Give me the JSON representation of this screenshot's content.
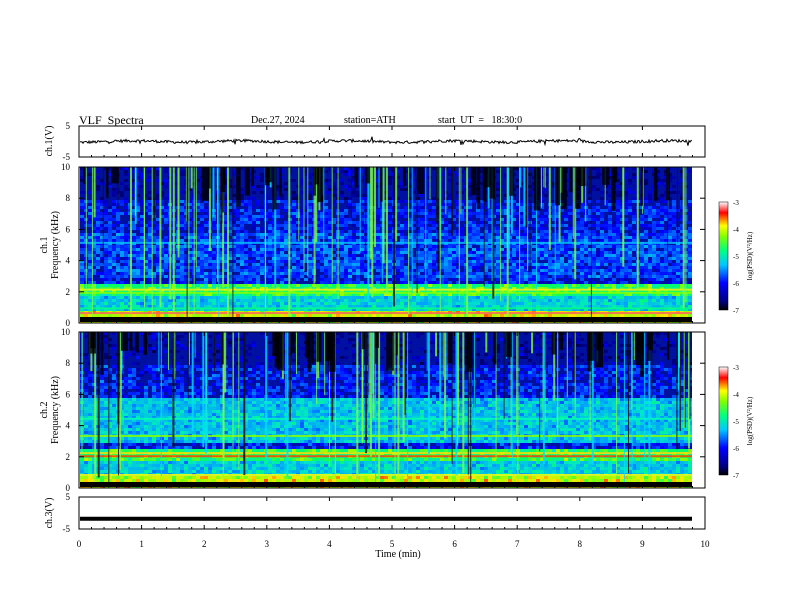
{
  "header": {
    "title": "VLF  Spectra",
    "date": "Dec.27, 2024",
    "station": "station=ATH",
    "start_ut": "start  UT  =   18:30:0"
  },
  "chart_data": [
    {
      "type": "line",
      "id": "ch1-waveform",
      "ylabel": "ch.1(V)",
      "ylim": [
        -5,
        5
      ],
      "y_ticks": [
        "5",
        "-5"
      ],
      "xlim": [
        0,
        10
      ],
      "description_free": true
    },
    {
      "type": "heatmap",
      "id": "ch1-spectrogram",
      "ylabel": "ch.1\nFrequency (kHz)",
      "ylabel_lines": [
        "ch.1",
        "Frequency (kHz)"
      ],
      "xlim": [
        0,
        10
      ],
      "ylim": [
        0,
        10
      ],
      "y_ticks": [
        "0",
        "2",
        "4",
        "6",
        "8",
        "10"
      ],
      "colorbar": {
        "label": "log(PSD)(V²/Hz)",
        "range": [
          -7,
          -3
        ],
        "ticks": [
          "-3",
          "-4",
          "-5",
          "-6",
          "-7"
        ]
      }
    },
    {
      "type": "heatmap",
      "id": "ch2-spectrogram",
      "ylabel_lines": [
        "ch.2",
        "Frequency (kHz)"
      ],
      "xlim": [
        0,
        10
      ],
      "ylim": [
        0,
        10
      ],
      "y_ticks": [
        "0",
        "2",
        "4",
        "6",
        "8",
        "10"
      ],
      "colorbar": {
        "label": "log(PSD)(V²/Hz)",
        "range": [
          -7,
          -3
        ],
        "ticks": [
          "-3",
          "-4",
          "-5",
          "-6",
          "-7"
        ]
      }
    },
    {
      "type": "line",
      "id": "ch3-waveform",
      "ylabel": "ch.3(V)",
      "ylim": [
        -5,
        5
      ],
      "y_ticks": [
        "5",
        "-5"
      ],
      "xlim": [
        0,
        10
      ],
      "level": -1.8
    }
  ],
  "x_axis": {
    "label": "Time (min)",
    "ticks": [
      "0",
      "1",
      "2",
      "3",
      "4",
      "5",
      "6",
      "7",
      "8",
      "9",
      "10"
    ],
    "range": [
      0,
      10
    ]
  },
  "colors": {
    "trace": "#000000",
    "spectrogram_low": "#00007f",
    "spectrogram_high": "#ff0000"
  }
}
